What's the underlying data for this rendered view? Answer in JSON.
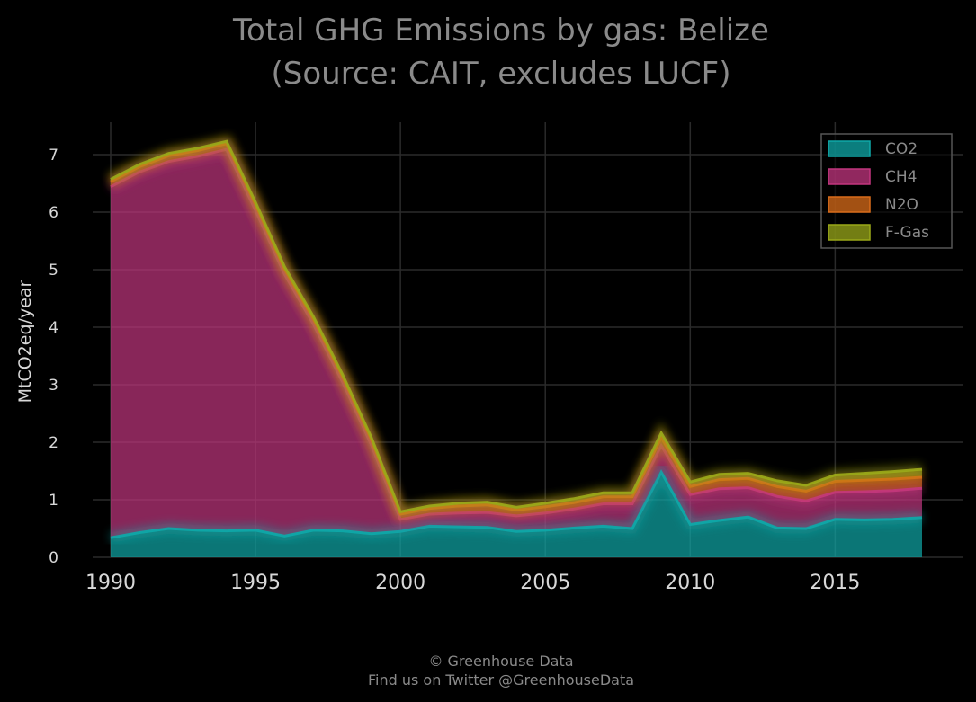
{
  "chart_data": {
    "type": "area",
    "stacked": true,
    "title": "Total GHG Emissions by gas: Belize",
    "subtitle": "(Source: CAIT, excludes LUCF)",
    "xlabel": "",
    "ylabel": "MtCO2eq/year",
    "xlim": [
      1990,
      2018
    ],
    "ylim": [
      0,
      7.5
    ],
    "x_ticks": [
      1990,
      1995,
      2000,
      2005,
      2010,
      2015
    ],
    "y_ticks": [
      0,
      1,
      2,
      3,
      4,
      5,
      6,
      7
    ],
    "grid": true,
    "legend_position": "top-right",
    "x": [
      1990,
      1991,
      1992,
      1993,
      1994,
      1995,
      1996,
      1997,
      1998,
      1999,
      2000,
      2001,
      2002,
      2003,
      2004,
      2005,
      2006,
      2007,
      2008,
      2009,
      2010,
      2011,
      2012,
      2013,
      2014,
      2015,
      2016,
      2017,
      2018
    ],
    "series": [
      {
        "name": "CO2",
        "color": "#0fa8a8",
        "values": [
          0.34,
          0.43,
          0.5,
          0.47,
          0.46,
          0.47,
          0.37,
          0.47,
          0.46,
          0.41,
          0.45,
          0.54,
          0.53,
          0.52,
          0.45,
          0.47,
          0.51,
          0.54,
          0.5,
          1.48,
          0.57,
          0.64,
          0.7,
          0.51,
          0.5,
          0.66,
          0.65,
          0.66,
          0.69
        ]
      },
      {
        "name": "CH4",
        "color": "#c2367f",
        "values": [
          6.1,
          6.27,
          6.38,
          6.5,
          6.63,
          5.56,
          4.55,
          3.58,
          2.59,
          1.54,
          0.21,
          0.21,
          0.24,
          0.26,
          0.27,
          0.3,
          0.33,
          0.39,
          0.43,
          0.46,
          0.52,
          0.55,
          0.51,
          0.55,
          0.48,
          0.47,
          0.49,
          0.5,
          0.51
        ]
      },
      {
        "name": "N2O",
        "color": "#d96c1a",
        "values": [
          0.09,
          0.09,
          0.1,
          0.1,
          0.1,
          0.1,
          0.09,
          0.09,
          0.09,
          0.09,
          0.09,
          0.1,
          0.12,
          0.13,
          0.1,
          0.11,
          0.11,
          0.12,
          0.12,
          0.14,
          0.14,
          0.16,
          0.16,
          0.17,
          0.17,
          0.19,
          0.2,
          0.2,
          0.19
        ]
      },
      {
        "name": "F-Gas",
        "color": "#9aa819",
        "values": [
          0.04,
          0.04,
          0.04,
          0.04,
          0.04,
          0.04,
          0.04,
          0.04,
          0.04,
          0.04,
          0.04,
          0.04,
          0.05,
          0.05,
          0.05,
          0.06,
          0.07,
          0.07,
          0.07,
          0.08,
          0.08,
          0.09,
          0.09,
          0.1,
          0.1,
          0.11,
          0.12,
          0.13,
          0.14
        ]
      }
    ]
  },
  "footer": {
    "line1": "© Greenhouse Data",
    "line2": "Find us on Twitter @GreenhouseData"
  }
}
